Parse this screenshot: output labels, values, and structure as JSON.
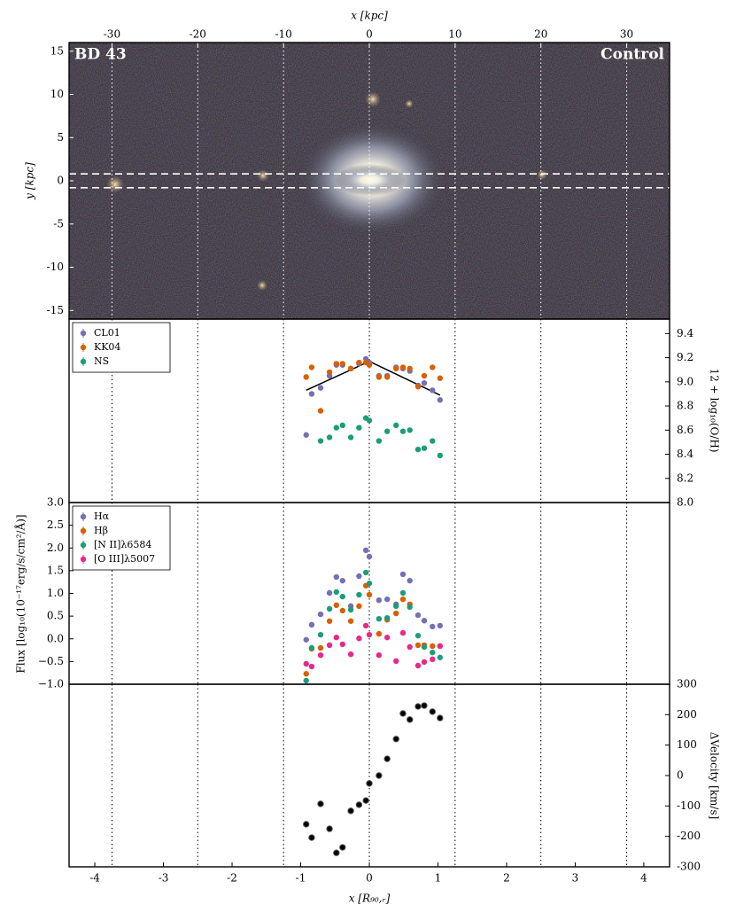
{
  "chart_data": [
    {
      "type": "image",
      "label_left": "BD 43",
      "label_right": "Control",
      "xlabel": "x [kpc]",
      "ylabel": "y [kpc]",
      "xlim": [
        -35,
        35
      ],
      "xticks": [
        -30,
        -20,
        -10,
        0,
        10,
        20,
        30
      ],
      "ylim": [
        -16,
        16
      ],
      "yticks": [
        -15,
        -10,
        -5,
        0,
        5,
        10,
        15
      ],
      "slit": [
        -0.8,
        0.8
      ]
    },
    {
      "type": "scatter",
      "y2label": "12 + log₁₀(O/H)",
      "legend": "upper left",
      "xlim": [
        -4.375,
        4.375
      ],
      "x": [
        -0.92,
        -0.84,
        -0.71,
        -0.58,
        -0.48,
        -0.39,
        -0.27,
        -0.15,
        -0.05,
        0.0,
        0.14,
        0.26,
        0.39,
        0.49,
        0.59,
        0.71,
        0.8,
        0.92,
        1.03
      ],
      "y2lim": [
        8.0,
        9.52
      ],
      "y2ticks": [
        {
          "value": 8.0,
          "label": "8.0"
        },
        8.2,
        8.4,
        8.6,
        8.8,
        {
          "value": 9.0,
          "label": "9.0"
        },
        9.2,
        9.4
      ],
      "series": [
        {
          "name": "CL01",
          "color": "#7570b3",
          "axis": "y2",
          "values": [
            8.56,
            8.9,
            8.95,
            9.05,
            9.14,
            9.14,
            9.11,
            9.15,
            9.19,
            9.16,
            9.05,
            9.05,
            9.12,
            9.11,
            9.09,
            8.97,
            8.99,
            8.93,
            8.85
          ]
        },
        {
          "name": "KK04",
          "color": "#d95f02",
          "axis": "y2",
          "values": [
            9.04,
            9.12,
            8.76,
            9.08,
            9.15,
            9.15,
            9.11,
            9.16,
            9.16,
            9.14,
            9.04,
            9.04,
            9.11,
            9.12,
            9.11,
            8.96,
            9.05,
            9.12,
            9.03
          ]
        },
        {
          "name": "NS",
          "color": "#1b9e77",
          "axis": "y2",
          "values": [
            null,
            null,
            8.51,
            8.54,
            8.62,
            8.64,
            8.54,
            8.62,
            8.7,
            8.68,
            8.51,
            8.59,
            8.64,
            8.59,
            8.6,
            8.44,
            8.45,
            8.51,
            8.39
          ]
        }
      ],
      "fit": {
        "color": "#000000",
        "x": [
          -0.92,
          0.0,
          1.03
        ],
        "values": [
          8.93,
          9.17,
          8.89
        ]
      }
    },
    {
      "type": "scatter",
      "ylabel": "Flux [log₁₀(10⁻¹⁷erg/s/cm²/Å)]",
      "legend": "upper left",
      "xlim": [
        -4.375,
        4.375
      ],
      "x": [
        -0.92,
        -0.84,
        -0.71,
        -0.58,
        -0.48,
        -0.39,
        -0.27,
        -0.15,
        -0.05,
        0.0,
        0.14,
        0.26,
        0.39,
        0.49,
        0.59,
        0.71,
        0.8,
        0.92,
        1.03
      ],
      "ylim": [
        -1.0,
        3.0
      ],
      "yticks": [
        {
          "value": -1.0,
          "label": "−1.0"
        },
        {
          "value": -0.5,
          "label": "−0.5"
        },
        {
          "value": 0.0,
          "label": "0.0"
        },
        0.5,
        {
          "value": 1.0,
          "label": "1.0"
        },
        1.5,
        {
          "value": 2.0,
          "label": "2.0"
        },
        2.5,
        {
          "value": 3.0,
          "label": "3.0"
        }
      ],
      "series": [
        {
          "name": "Hα",
          "color": "#7570b3",
          "values": [
            -0.02,
            0.31,
            0.54,
            1.01,
            1.36,
            1.28,
            0.72,
            1.38,
            1.95,
            1.81,
            0.85,
            0.87,
            0.76,
            1.42,
            1.28,
            0.52,
            0.4,
            0.27,
            0.29
          ]
        },
        {
          "name": "Hβ",
          "color": "#d95f02",
          "values": [
            -0.77,
            -0.22,
            -0.2,
            0.39,
            0.74,
            0.62,
            0.39,
            0.72,
            1.17,
            0.97,
            0.11,
            0.42,
            0.56,
            0.87,
            0.76,
            -0.14,
            -0.14,
            -0.16,
            -0.16
          ]
        },
        {
          "name": "[N II]λ6584",
          "color": "#1b9e77",
          "values": [
            -0.92,
            -0.2,
            0.09,
            0.66,
            1.03,
            0.93,
            0.64,
            0.97,
            1.46,
            1.22,
            0.44,
            0.46,
            0.72,
            1.01,
            0.7,
            0.07,
            -0.18,
            -0.3,
            -0.41
          ]
        },
        {
          "name": "[O III]λ5007",
          "color": "#e7298a",
          "values": [
            -0.55,
            -0.61,
            -0.36,
            -0.14,
            0.03,
            -0.12,
            -0.34,
            0.01,
            0.29,
            0.09,
            -0.36,
            0.03,
            -0.49,
            0.13,
            -0.18,
            -0.59,
            -0.51,
            -0.45,
            -0.16
          ]
        }
      ]
    },
    {
      "type": "scatter",
      "y2label": "ΔVelocity [km/s]",
      "xlabel": "x [R₉₀,ᵣ]",
      "xlim": [
        -4.375,
        4.375
      ],
      "xticks": [
        -4,
        -3,
        -2,
        -1,
        0,
        1,
        2,
        3,
        4
      ],
      "x": [
        -0.92,
        -0.84,
        -0.71,
        -0.58,
        -0.48,
        -0.39,
        -0.27,
        -0.15,
        -0.05,
        0.0,
        0.14,
        0.26,
        0.39,
        0.49,
        0.59,
        0.71,
        0.8,
        0.92,
        1.03
      ],
      "y2lim": [
        -300,
        300
      ],
      "y2ticks": [
        -300,
        -200,
        -100,
        0,
        100,
        200,
        300
      ],
      "series": [
        {
          "color": "#000000",
          "axis": "y2",
          "values": [
            -160,
            -204,
            -93,
            -175,
            -254,
            -236,
            -116,
            -96,
            -82,
            -26,
            0,
            55,
            120,
            204,
            184,
            227,
            230,
            210,
            189
          ]
        }
      ]
    }
  ]
}
